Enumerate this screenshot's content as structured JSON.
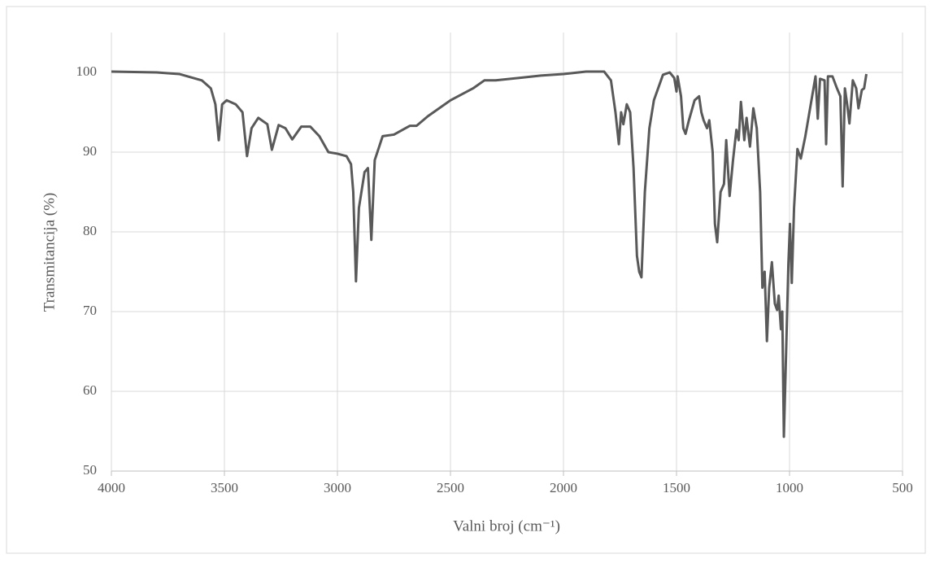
{
  "chart_data": {
    "type": "line",
    "xlabel": "Valni broj (cm⁻¹)",
    "ylabel": "Transmitancija (%)",
    "xlim": [
      4000,
      500
    ],
    "ylim": [
      50,
      105
    ],
    "xticks": [
      4000,
      3500,
      3000,
      2500,
      2000,
      1500,
      1000,
      500
    ],
    "yticks": [
      50,
      60,
      70,
      80,
      90,
      100
    ],
    "grid": true,
    "series": [
      {
        "color": "#595959",
        "x": [
          4000,
          3800,
          3700,
          3600,
          3560,
          3540,
          3525,
          3510,
          3490,
          3450,
          3420,
          3400,
          3380,
          3350,
          3310,
          3290,
          3260,
          3230,
          3200,
          3160,
          3120,
          3080,
          3040,
          3000,
          2960,
          2940,
          2930,
          2918,
          2905,
          2880,
          2865,
          2850,
          2835,
          2800,
          2750,
          2680,
          2650,
          2600,
          2500,
          2400,
          2350,
          2300,
          2200,
          2100,
          2000,
          1900,
          1820,
          1790,
          1770,
          1755,
          1745,
          1735,
          1720,
          1705,
          1690,
          1675,
          1665,
          1655,
          1640,
          1620,
          1600,
          1560,
          1530,
          1510,
          1500,
          1495,
          1480,
          1470,
          1460,
          1445,
          1420,
          1400,
          1390,
          1380,
          1365,
          1355,
          1340,
          1330,
          1320,
          1305,
          1290,
          1280,
          1265,
          1250,
          1235,
          1225,
          1215,
          1200,
          1190,
          1175,
          1160,
          1145,
          1130,
          1120,
          1110,
          1100,
          1090,
          1078,
          1065,
          1055,
          1048,
          1038,
          1032,
          1025,
          1015,
          1005,
          998,
          990,
          980,
          965,
          950,
          930,
          900,
          885,
          875,
          865,
          845,
          838,
          830,
          810,
          790,
          775,
          765,
          755,
          745,
          735,
          720,
          705,
          695,
          680,
          670,
          660
        ],
        "values": [
          100.1,
          100,
          99.8,
          99,
          98,
          96,
          91.5,
          96,
          96.5,
          96,
          95,
          89.5,
          93,
          94.3,
          93.5,
          90.3,
          93.4,
          93,
          91.6,
          93.2,
          93.2,
          92,
          90,
          89.8,
          89.5,
          88.5,
          85,
          73.8,
          83,
          87.5,
          88,
          79,
          89,
          92,
          92.2,
          93.3,
          93.3,
          94.5,
          96.5,
          98,
          99,
          99,
          99.3,
          99.6,
          99.8,
          100.1,
          100.1,
          99,
          95,
          91,
          95,
          93.5,
          96,
          95,
          88,
          77,
          75,
          74.3,
          85,
          93,
          96.5,
          99.7,
          100,
          99.3,
          97.6,
          99.5,
          97,
          93,
          92.3,
          94,
          96.5,
          97,
          95,
          94,
          93,
          94,
          90,
          81,
          78.7,
          85,
          86,
          91.5,
          84.5,
          89,
          92.8,
          91.5,
          96.3,
          91.5,
          94.3,
          90.7,
          95.5,
          93,
          85,
          73,
          75,
          66.3,
          73,
          76.2,
          71,
          70.2,
          72,
          67.8,
          70,
          54.3,
          65,
          76,
          81,
          73.6,
          83,
          90.4,
          89.2,
          92,
          97,
          99.5,
          94.2,
          99.2,
          99,
          91,
          99.5,
          99.5,
          98,
          97,
          85.7,
          98,
          96,
          93.6,
          99,
          98,
          95.5,
          97.8,
          98,
          99.8
        ]
      }
    ]
  }
}
